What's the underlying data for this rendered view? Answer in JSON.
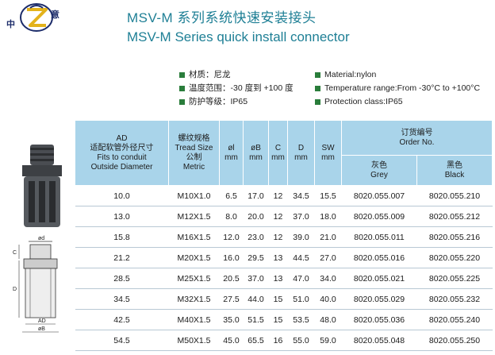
{
  "logo": {
    "left_char": "中",
    "right_char": "意"
  },
  "title": {
    "cn": "MSV-M 系列系统快速安装接头",
    "en": "MSV-M Series quick install connector"
  },
  "features_cn": [
    "材质：尼龙",
    "温度范围：-30 度到 +100 度",
    "防护等级：IP65"
  ],
  "features_en": [
    "Material:nylon",
    "Temperature range:From -30°C to +100°C",
    "Protection class:IP65"
  ],
  "dimension_labels": {
    "d1": "ød",
    "c": "C",
    "d": "D",
    "ad": "AD",
    "ob": "øB"
  },
  "table": {
    "headers": {
      "ad": [
        "AD",
        "适配软管外径尺寸",
        "Fits to conduit",
        "Outside Diameter"
      ],
      "thread": [
        "螺纹规格",
        "Tread Size",
        "公制",
        "Metric"
      ],
      "ol": [
        "øl",
        "mm"
      ],
      "ob": [
        "øB",
        "mm"
      ],
      "c": [
        "C",
        "mm"
      ],
      "d": [
        "D",
        "mm"
      ],
      "sw": [
        "SW",
        "mm"
      ],
      "order": [
        "订货编号",
        "Order No."
      ],
      "grey": [
        "灰色",
        "Grey"
      ],
      "black": [
        "黑色",
        "Black"
      ]
    },
    "rows": [
      [
        "10.0",
        "M10X1.0",
        "6.5",
        "17.0",
        "12",
        "34.5",
        "15.5",
        "8020.055.007",
        "8020.055.210"
      ],
      [
        "13.0",
        "M12X1.5",
        "8.0",
        "20.0",
        "12",
        "37.0",
        "18.0",
        "8020.055.009",
        "8020.055.212"
      ],
      [
        "15.8",
        "M16X1.5",
        "12.0",
        "23.0",
        "12",
        "39.0",
        "21.0",
        "8020.055.011",
        "8020.055.216"
      ],
      [
        "21.2",
        "M20X1.5",
        "16.0",
        "29.5",
        "13",
        "44.5",
        "27.0",
        "8020.055.016",
        "8020.055.220"
      ],
      [
        "28.5",
        "M25X1.5",
        "20.5",
        "37.0",
        "13",
        "47.0",
        "34.0",
        "8020.055.021",
        "8020.055.225"
      ],
      [
        "34.5",
        "M32X1.5",
        "27.5",
        "44.0",
        "15",
        "51.0",
        "40.0",
        "8020.055.029",
        "8020.055.232"
      ],
      [
        "42.5",
        "M40X1.5",
        "35.0",
        "51.5",
        "15",
        "53.5",
        "48.0",
        "8020.055.036",
        "8020.055.240"
      ],
      [
        "54.5",
        "M50X1.5",
        "45.0",
        "65.5",
        "16",
        "55.0",
        "59.0",
        "8020.055.048",
        "8020.055.250"
      ]
    ]
  }
}
